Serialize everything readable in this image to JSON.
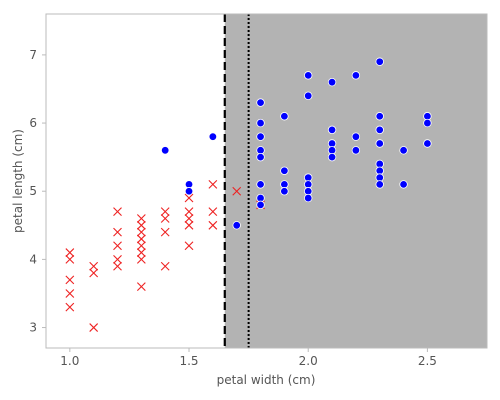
{
  "chart_data": {
    "type": "scatter",
    "xlabel": "petal width (cm)",
    "ylabel": "petal length (cm)",
    "xlim": [
      0.9,
      2.75
    ],
    "ylim": [
      2.7,
      7.6
    ],
    "xticks": [
      1.0,
      1.5,
      2.0,
      2.5
    ],
    "xtick_labels": [
      "1.0",
      "1.5",
      "2.0",
      "2.5"
    ],
    "yticks": [
      3,
      4,
      5,
      6,
      7
    ],
    "ytick_labels": [
      "3",
      "4",
      "5",
      "6",
      "7"
    ],
    "grid": false,
    "decision_region": {
      "x_from": 1.65,
      "x_to": 2.75,
      "color": "#b3b3b3"
    },
    "threshold_dashed": 1.65,
    "threshold_dotted": 1.75,
    "series": [
      {
        "marker": "x",
        "color": "#ee2222",
        "points": [
          [
            1.0,
            4.1
          ],
          [
            1.0,
            4.0
          ],
          [
            1.0,
            3.7
          ],
          [
            1.0,
            3.5
          ],
          [
            1.0,
            3.3
          ],
          [
            1.1,
            3.9
          ],
          [
            1.1,
            3.8
          ],
          [
            1.1,
            3.0
          ],
          [
            1.2,
            4.7
          ],
          [
            1.2,
            4.4
          ],
          [
            1.2,
            4.2
          ],
          [
            1.2,
            4.0
          ],
          [
            1.2,
            3.9
          ],
          [
            1.3,
            4.6
          ],
          [
            1.3,
            4.5
          ],
          [
            1.3,
            4.4
          ],
          [
            1.3,
            4.3
          ],
          [
            1.3,
            4.2
          ],
          [
            1.3,
            4.1
          ],
          [
            1.3,
            4.0
          ],
          [
            1.3,
            3.6
          ],
          [
            1.4,
            4.7
          ],
          [
            1.4,
            4.6
          ],
          [
            1.4,
            4.4
          ],
          [
            1.4,
            3.9
          ],
          [
            1.5,
            4.9
          ],
          [
            1.5,
            4.7
          ],
          [
            1.5,
            4.6
          ],
          [
            1.5,
            4.5
          ],
          [
            1.5,
            4.2
          ],
          [
            1.6,
            5.1
          ],
          [
            1.6,
            4.7
          ],
          [
            1.6,
            4.5
          ],
          [
            1.7,
            5.0
          ],
          [
            1.8,
            4.8
          ]
        ]
      },
      {
        "marker": "circle",
        "color": "#0000ff",
        "points": [
          [
            1.4,
            5.6
          ],
          [
            1.5,
            5.1
          ],
          [
            1.5,
            5.0
          ],
          [
            1.6,
            5.8
          ],
          [
            1.7,
            4.5
          ],
          [
            1.8,
            6.3
          ],
          [
            1.8,
            6.0
          ],
          [
            1.8,
            5.8
          ],
          [
            1.8,
            5.6
          ],
          [
            1.8,
            5.5
          ],
          [
            1.8,
            5.1
          ],
          [
            1.8,
            4.9
          ],
          [
            1.8,
            4.8
          ],
          [
            1.9,
            6.1
          ],
          [
            1.9,
            5.3
          ],
          [
            1.9,
            5.1
          ],
          [
            1.9,
            5.0
          ],
          [
            2.0,
            6.7
          ],
          [
            2.0,
            6.4
          ],
          [
            2.0,
            5.2
          ],
          [
            2.0,
            5.1
          ],
          [
            2.0,
            5.0
          ],
          [
            2.0,
            4.9
          ],
          [
            2.1,
            6.6
          ],
          [
            2.1,
            5.9
          ],
          [
            2.1,
            5.7
          ],
          [
            2.1,
            5.6
          ],
          [
            2.1,
            5.5
          ],
          [
            2.2,
            6.7
          ],
          [
            2.2,
            5.8
          ],
          [
            2.2,
            5.6
          ],
          [
            2.3,
            6.9
          ],
          [
            2.3,
            6.1
          ],
          [
            2.3,
            5.9
          ],
          [
            2.3,
            5.7
          ],
          [
            2.3,
            5.4
          ],
          [
            2.3,
            5.3
          ],
          [
            2.3,
            5.2
          ],
          [
            2.3,
            5.1
          ],
          [
            2.4,
            5.6
          ],
          [
            2.4,
            5.1
          ],
          [
            2.5,
            6.1
          ],
          [
            2.5,
            6.0
          ],
          [
            2.5,
            5.7
          ]
        ]
      }
    ]
  }
}
